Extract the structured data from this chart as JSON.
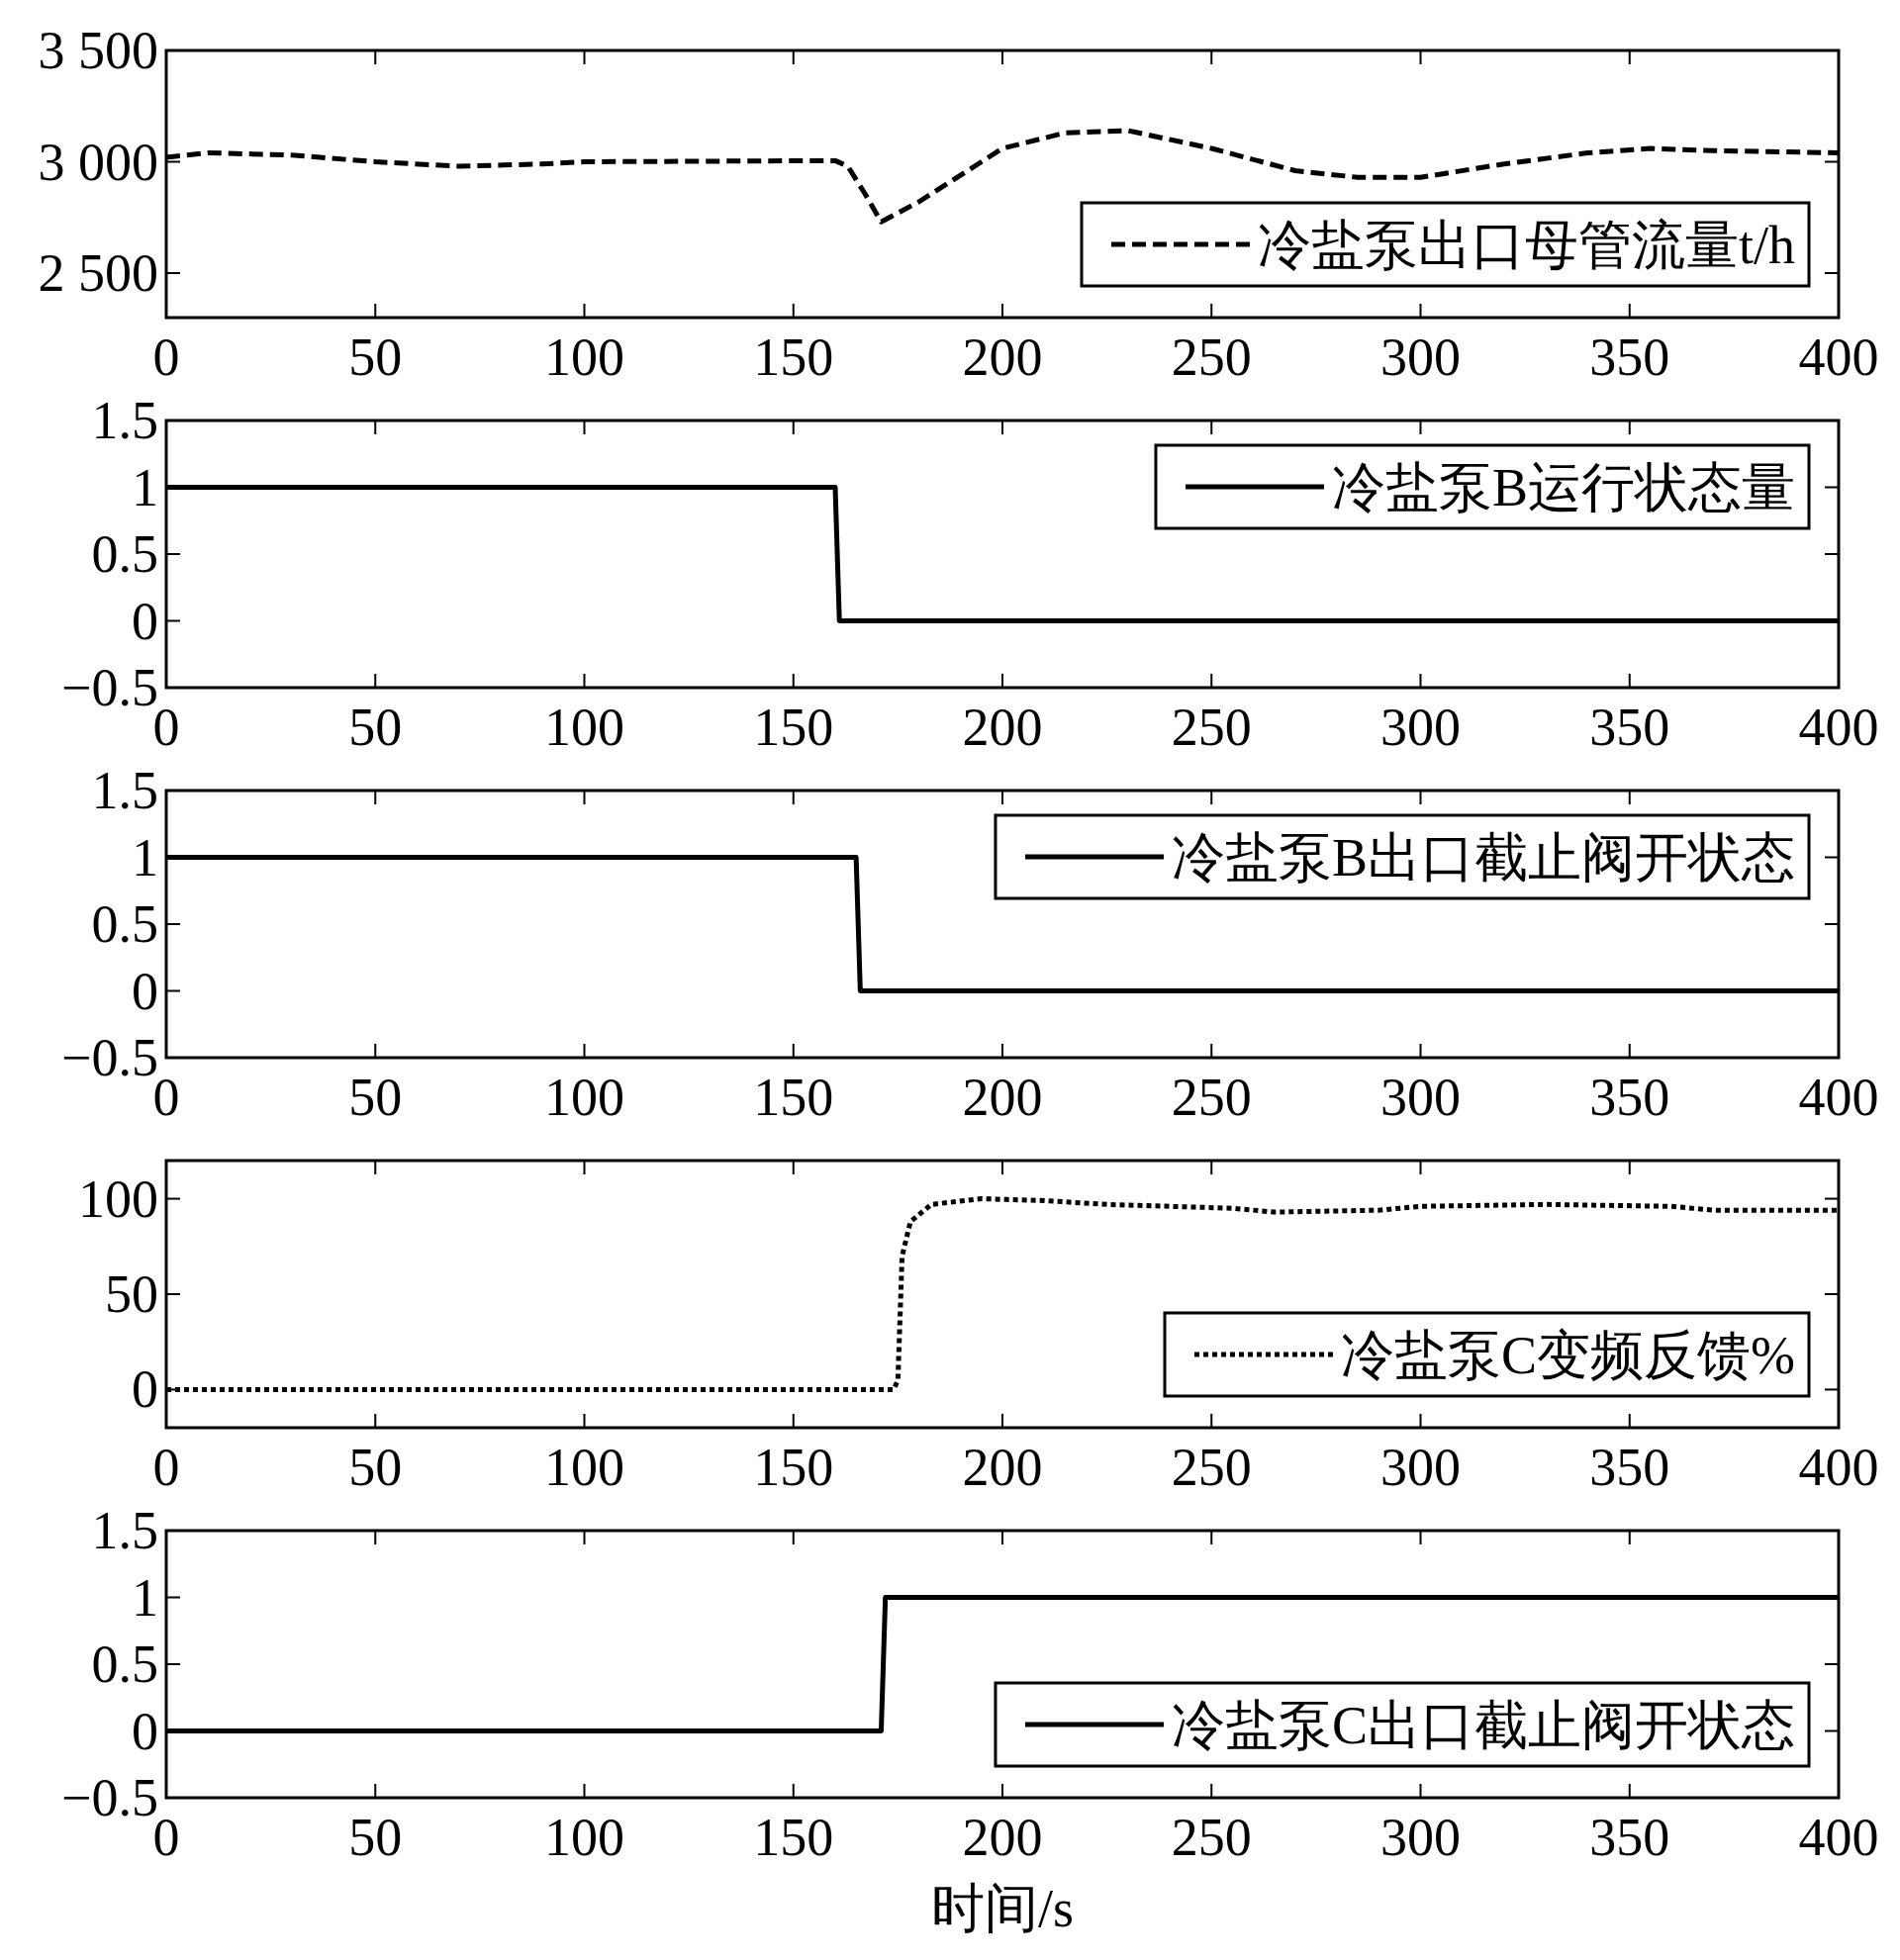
{
  "chart_data": [
    {
      "type": "line",
      "x": [
        0,
        10,
        30,
        50,
        70,
        90,
        100,
        160,
        163,
        167,
        171,
        180,
        200,
        215,
        230,
        250,
        270,
        285,
        300,
        320,
        340,
        355,
        370,
        400
      ],
      "series": [
        {
          "name": "冷盐泵出口母管流量t/h",
          "color": "#000000",
          "line_style": "dashed",
          "values": [
            3020,
            3040,
            3030,
            3000,
            2980,
            2990,
            3000,
            3005,
            2980,
            2860,
            2730,
            2820,
            3060,
            3130,
            3140,
            3060,
            2960,
            2930,
            2930,
            2990,
            3040,
            3060,
            3050,
            3040
          ]
        }
      ],
      "xlim": [
        0,
        400
      ],
      "ylim": [
        2300,
        3500
      ],
      "xticks": [
        0,
        50,
        100,
        150,
        200,
        250,
        300,
        350,
        400
      ],
      "yticks": [
        {
          "value": 2500,
          "label": "2 500"
        },
        {
          "value": 3000,
          "label": "3 000"
        },
        {
          "value": 3500,
          "label": "3 500"
        }
      ],
      "legend": "bottom right"
    },
    {
      "type": "line",
      "x": [
        0,
        160,
        161,
        400
      ],
      "series": [
        {
          "name": "冷盐泵B运行状态量",
          "color": "#000000",
          "line_style": "solid",
          "values": [
            1,
            1,
            0,
            0
          ]
        }
      ],
      "xlim": [
        0,
        400
      ],
      "ylim": [
        -0.5,
        1.5
      ],
      "xticks": [
        0,
        50,
        100,
        150,
        200,
        250,
        300,
        350,
        400
      ],
      "yticks": [
        {
          "value": -0.5,
          "label": "−0.5"
        },
        0,
        0.5,
        1,
        1.5
      ],
      "legend": "top right"
    },
    {
      "type": "line",
      "x": [
        0,
        165,
        166,
        400
      ],
      "series": [
        {
          "name": "冷盐泵B出口截止阀开状态",
          "color": "#000000",
          "line_style": "solid",
          "values": [
            1,
            1,
            0,
            0
          ]
        }
      ],
      "xlim": [
        0,
        400
      ],
      "ylim": [
        -0.5,
        1.5
      ],
      "xticks": [
        0,
        50,
        100,
        150,
        200,
        250,
        300,
        350,
        400
      ],
      "yticks": [
        {
          "value": -0.5,
          "label": "−0.5"
        },
        0,
        0.5,
        1,
        1.5
      ],
      "legend": "top right"
    },
    {
      "type": "line",
      "x": [
        0,
        174,
        175,
        176,
        178,
        183,
        195,
        210,
        225,
        255,
        265,
        290,
        300,
        330,
        360,
        370,
        400
      ],
      "series": [
        {
          "name": "冷盐泵C变频反馈%",
          "color": "#000000",
          "line_style": "dotted",
          "values": [
            0,
            0,
            5,
            70,
            88,
            97,
            100,
            99,
            97,
            95,
            93,
            94,
            96,
            97,
            96,
            94,
            94
          ]
        }
      ],
      "xlim": [
        0,
        400
      ],
      "ylim": [
        -20,
        120
      ],
      "xticks": [
        0,
        50,
        100,
        150,
        200,
        250,
        300,
        350,
        400
      ],
      "yticks": [
        0,
        50,
        100
      ],
      "legend": "bottom right"
    },
    {
      "type": "line",
      "x": [
        0,
        171,
        172,
        400
      ],
      "series": [
        {
          "name": "冷盐泵C出口截止阀开状态",
          "color": "#000000",
          "line_style": "solid",
          "values": [
            0,
            0,
            1,
            1
          ]
        }
      ],
      "xlim": [
        0,
        400
      ],
      "ylim": [
        -0.5,
        1.5
      ],
      "xticks": [
        0,
        50,
        100,
        150,
        200,
        250,
        300,
        350,
        400
      ],
      "yticks": [
        {
          "value": -0.5,
          "label": "−0.5"
        },
        0,
        0.5,
        1,
        1.5
      ],
      "legend": "bottom right",
      "xlabel": "时间/s"
    }
  ]
}
